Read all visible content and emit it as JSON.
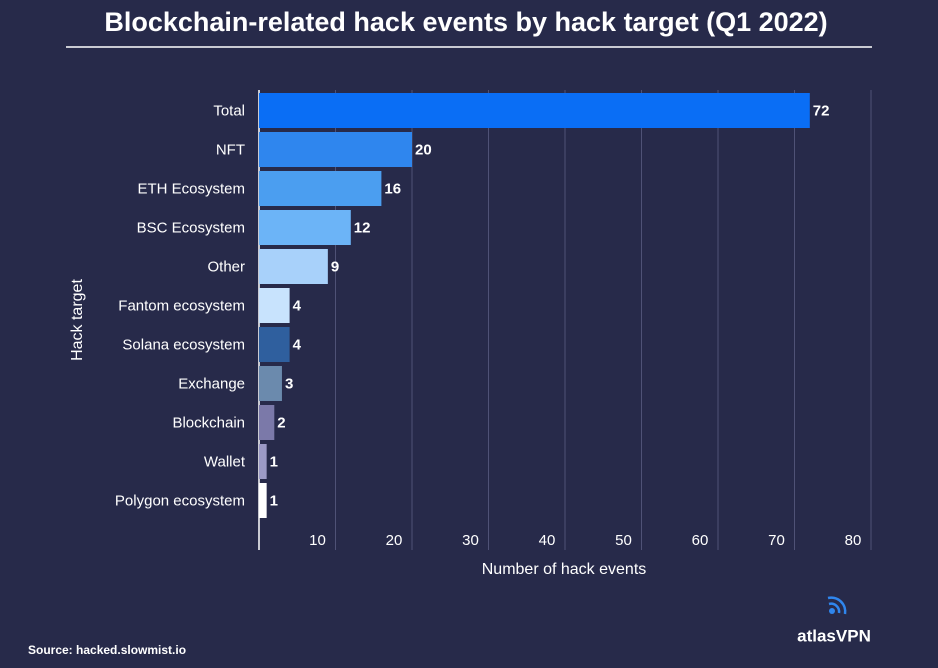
{
  "chart_data": {
    "type": "bar",
    "orientation": "horizontal",
    "title": "Blockchain-related hack events by hack target (Q1 2022)",
    "x_label": "Number of hack events",
    "y_label": "Hack target",
    "categories": [
      "Total",
      "NFT",
      "ETH Ecosystem",
      "BSC Ecosystem",
      "Other",
      "Fantom ecosystem",
      "Solana ecosystem",
      "Exchange",
      "Blockchain",
      "Wallet",
      "Polygon ecosystem"
    ],
    "values": [
      72,
      20,
      16,
      12,
      9,
      4,
      4,
      3,
      2,
      1,
      1
    ],
    "colors": [
      "#0a6ef5",
      "#2f86ee",
      "#4b9ef0",
      "#6cb4f7",
      "#a8d1fa",
      "#c8e3fd",
      "#2f5f9e",
      "#6b8aad",
      "#7b79a9",
      "#9c9ac6",
      "#ffffff"
    ],
    "xlim": [
      0,
      80
    ],
    "xticks": [
      10,
      20,
      30,
      40,
      50,
      60,
      70,
      80
    ],
    "grid": true,
    "source": "Source: hacked.slowmist.io",
    "brand": "atlasVPN"
  }
}
